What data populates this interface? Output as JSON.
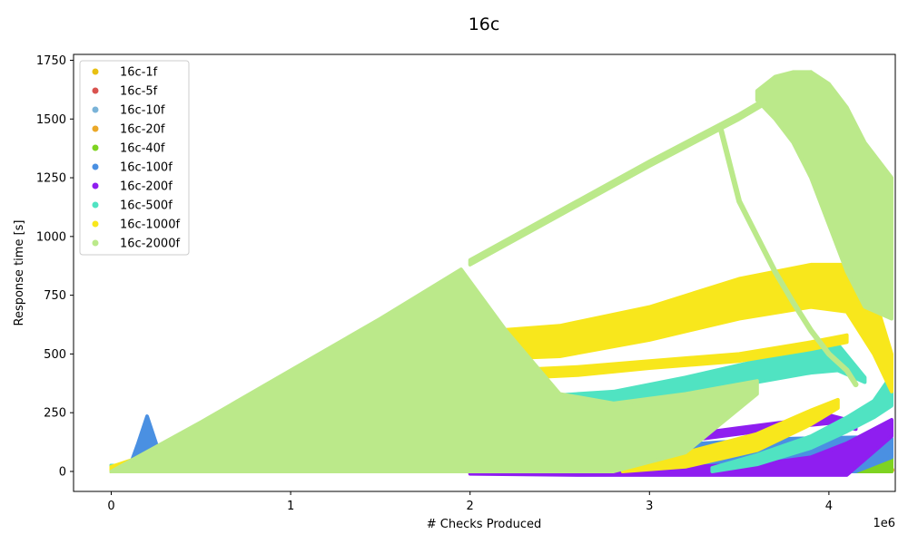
{
  "chart_data": {
    "type": "scatter",
    "title": "16c",
    "xlabel": "# Checks Produced",
    "ylabel": "Response time [s]",
    "x_offset_label": "1e6",
    "xlim": [
      -0.21,
      4.37
    ],
    "ylim": [
      -85,
      1775
    ],
    "x_ticks": [
      0,
      1,
      2,
      3,
      4
    ],
    "y_ticks": [
      0,
      250,
      500,
      750,
      1000,
      1250,
      1500,
      1750
    ],
    "grid": false,
    "legend_position": "top-left",
    "series": [
      {
        "name": "16c-1f",
        "color": "#e8c012",
        "bands": [
          {
            "x": [
              0,
              4.35
            ],
            "lo": [
              0,
              0
            ],
            "hi": [
              10,
              10
            ]
          }
        ],
        "points": [
          [
            4.32,
            5
          ],
          [
            4.34,
            5
          ]
        ]
      },
      {
        "name": "16c-5f",
        "color": "#d9534f",
        "bands": [
          {
            "x": [
              0,
              0.1,
              4.35
            ],
            "lo": [
              0,
              0,
              0
            ],
            "hi": [
              25,
              15,
              10
            ]
          }
        ],
        "points": [
          [
            0.02,
            20
          ],
          [
            0.05,
            18
          ],
          [
            4.34,
            8
          ]
        ]
      },
      {
        "name": "16c-10f",
        "color": "#7ab3d8",
        "bands": [
          {
            "x": [
              0,
              4.35
            ],
            "lo": [
              0,
              0
            ],
            "hi": [
              8,
              8
            ]
          }
        ],
        "points": []
      },
      {
        "name": "16c-20f",
        "color": "#eba828",
        "bands": [
          {
            "x": [
              0,
              4.35
            ],
            "lo": [
              0,
              0
            ],
            "hi": [
              10,
              10
            ]
          }
        ],
        "points": [
          [
            4.33,
            12
          ],
          [
            4.35,
            6
          ]
        ]
      },
      {
        "name": "16c-40f",
        "color": "#7ed321",
        "bands": [
          {
            "x": [
              0,
              4.1,
              4.2,
              4.35
            ],
            "lo": [
              0,
              0,
              0,
              0
            ],
            "hi": [
              5,
              5,
              20,
              55
            ]
          }
        ],
        "points": []
      },
      {
        "name": "16c-100f",
        "color": "#4a90e2",
        "bands": [
          {
            "x": [
              0.1,
              0.15,
              0.2,
              0.25,
              0.3
            ],
            "lo": [
              0,
              0,
              0,
              0,
              0
            ],
            "hi": [
              15,
              120,
              235,
              120,
              15
            ]
          },
          {
            "x": [
              0,
              1,
              2,
              2.6,
              3.0,
              3.4,
              3.8,
              4.15,
              4.35
            ],
            "lo": [
              0,
              0,
              0,
              0,
              0,
              0,
              0,
              0,
              60
            ],
            "hi": [
              20,
              25,
              40,
              80,
              105,
              125,
              140,
              145,
              140
            ]
          }
        ],
        "points": []
      },
      {
        "name": "16c-200f",
        "color": "#8f1ef0",
        "bands": [
          {
            "x": [
              2.9,
              3.2,
              3.5,
              3.8,
              4.0,
              4.15
            ],
            "lo": [
              105,
              130,
              160,
              190,
              205,
              180
            ],
            "hi": [
              130,
              155,
              185,
              215,
              240,
              210
            ]
          },
          {
            "x": [
              2.0,
              2.6,
              3.2,
              3.6,
              3.9,
              4.1,
              4.35
            ],
            "lo": [
              -10,
              -15,
              -15,
              -15,
              -15,
              -15,
              150
            ],
            "hi": [
              5,
              10,
              20,
              30,
              60,
              120,
              220
            ]
          }
        ],
        "points": []
      },
      {
        "name": "16c-500f",
        "color": "#50e3c2",
        "bands": [
          {
            "x": [
              0,
              1,
              2,
              2.4,
              2.8,
              3.2,
              3.6,
              3.9,
              4.05,
              4.2
            ],
            "lo": [
              0,
              0,
              0,
              250,
              270,
              310,
              380,
              420,
              430,
              380
            ],
            "hi": [
              25,
              30,
              60,
              320,
              340,
              400,
              470,
              520,
              540,
              400
            ]
          },
          {
            "x": [
              3.35,
              3.6,
              3.9,
              4.1,
              4.25,
              4.35
            ],
            "lo": [
              0,
              30,
              100,
              170,
              230,
              280
            ],
            "hi": [
              15,
              70,
              150,
              230,
              300,
              410
            ]
          }
        ],
        "points": []
      },
      {
        "name": "16c-1000f",
        "color": "#f8e71c",
        "bands": [
          {
            "x": [
              2.15,
              2.5,
              3.0,
              3.5,
              3.9,
              4.1,
              4.25,
              4.35
            ],
            "lo": [
              480,
              490,
              560,
              650,
              700,
              680,
              500,
              340
            ],
            "hi": [
              600,
              620,
              700,
              820,
              880,
              880,
              750,
              500
            ]
          },
          {
            "x": [
              2.2,
              2.6,
              3.0,
              3.5,
              3.9,
              4.1
            ],
            "lo": [
              395,
              410,
              440,
              470,
              520,
              550
            ],
            "hi": [
              430,
              445,
              470,
              500,
              550,
              580
            ]
          },
          {
            "x": [
              2.85,
              3.2,
              3.6,
              3.9,
              4.05
            ],
            "lo": [
              0,
              20,
              90,
              200,
              270
            ],
            "hi": [
              40,
              80,
              160,
              260,
              305
            ]
          },
          {
            "x": [
              0,
              0.2,
              0.5,
              1.0,
              1.5,
              2.0
            ],
            "lo": [
              0,
              5,
              5,
              5,
              5,
              0
            ],
            "hi": [
              20,
              70,
              40,
              60,
              50,
              40
            ]
          }
        ],
        "points": []
      },
      {
        "name": "16c-2000f",
        "color": "#bbe98a",
        "bands": [
          {
            "x": [
              0,
              0.5,
              1.0,
              1.5,
              1.95,
              2.2,
              2.5,
              2.8,
              3.2,
              3.6
            ],
            "lo": [
              0,
              0,
              0,
              0,
              0,
              0,
              0,
              0,
              80,
              330
            ],
            "hi": [
              0,
              210,
              430,
              650,
              860,
              600,
              330,
              290,
              330,
              385
            ]
          },
          {
            "x": [
              2.0,
              2.5,
              3.0,
              3.5,
              3.9
            ],
            "lo": [
              880,
              1090,
              1300,
              1500,
              1680
            ],
            "hi": [
              900,
              1110,
              1320,
              1520,
              1700
            ]
          },
          {
            "x": [
              3.6,
              3.7,
              3.8,
              3.9,
              4.0,
              4.1,
              4.2,
              4.35
            ],
            "lo": [
              1580,
              1500,
              1400,
              1250,
              1050,
              850,
              700,
              650
            ],
            "hi": [
              1620,
              1680,
              1700,
              1700,
              1650,
              1550,
              1400,
              1250
            ]
          }
        ],
        "paths": [
          {
            "x": [
              3.4,
              3.45,
              3.5,
              3.6,
              3.7,
              3.8,
              3.9,
              4.0,
              4.1,
              4.15
            ],
            "y": [
              1450,
              1300,
              1150,
              1000,
              850,
              720,
              600,
              500,
              430,
              370
            ]
          }
        ],
        "points": []
      }
    ]
  }
}
